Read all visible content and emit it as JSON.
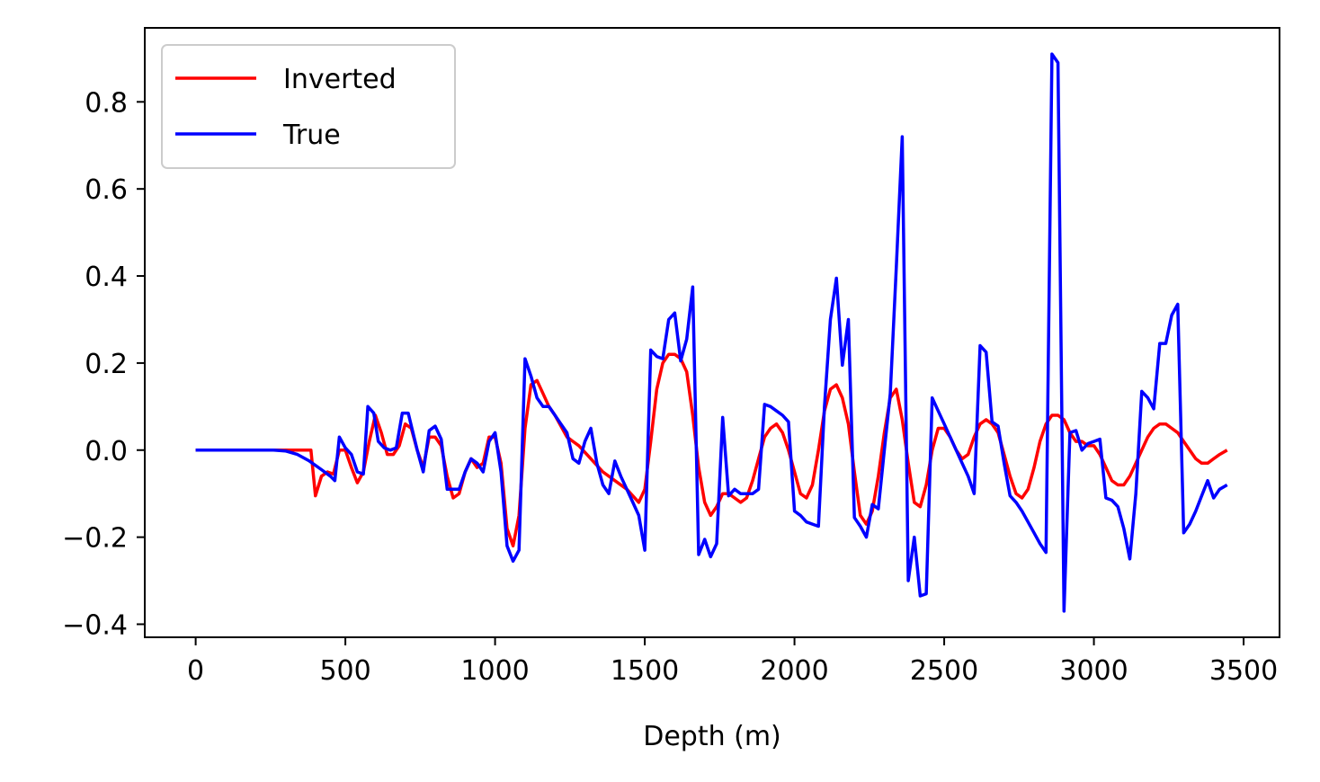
{
  "chart_data": {
    "type": "line",
    "title": "",
    "xlabel": "Depth (m)",
    "ylabel": "",
    "xlim": [
      -170,
      3620
    ],
    "ylim": [
      -0.43,
      0.97
    ],
    "x_ticks": [
      0,
      500,
      1000,
      1500,
      2000,
      2500,
      3000,
      3500
    ],
    "x_tick_labels": [
      "0",
      "500",
      "1000",
      "1500",
      "2000",
      "2500",
      "3000",
      "3500"
    ],
    "y_ticks": [
      -0.4,
      -0.2,
      0.0,
      0.2,
      0.4,
      0.6,
      0.8
    ],
    "y_tick_labels": [
      "−0.4",
      "−0.2",
      "0.0",
      "0.2",
      "0.4",
      "0.6",
      "0.8"
    ],
    "grid": false,
    "legend_position": "top-left",
    "series": [
      {
        "name": "Inverted",
        "color": "#ff0000",
        "points": [
          [
            0,
            0
          ],
          [
            100,
            0
          ],
          [
            200,
            0
          ],
          [
            300,
            0
          ],
          [
            340,
            0
          ],
          [
            385,
            0
          ],
          [
            400,
            -0.105
          ],
          [
            420,
            -0.06
          ],
          [
            440,
            -0.05
          ],
          [
            460,
            -0.055
          ],
          [
            480,
            0.0
          ],
          [
            500,
            0.0
          ],
          [
            520,
            -0.04
          ],
          [
            540,
            -0.075
          ],
          [
            560,
            -0.05
          ],
          [
            580,
            0.02
          ],
          [
            600,
            0.08
          ],
          [
            620,
            0.04
          ],
          [
            640,
            -0.01
          ],
          [
            660,
            -0.01
          ],
          [
            680,
            0.01
          ],
          [
            700,
            0.06
          ],
          [
            720,
            0.05
          ],
          [
            740,
            0.0
          ],
          [
            760,
            -0.04
          ],
          [
            780,
            0.03
          ],
          [
            800,
            0.03
          ],
          [
            820,
            0.01
          ],
          [
            840,
            -0.06
          ],
          [
            860,
            -0.11
          ],
          [
            880,
            -0.1
          ],
          [
            900,
            -0.05
          ],
          [
            920,
            -0.02
          ],
          [
            940,
            -0.04
          ],
          [
            960,
            -0.03
          ],
          [
            980,
            0.03
          ],
          [
            1000,
            0.03
          ],
          [
            1020,
            -0.03
          ],
          [
            1040,
            -0.18
          ],
          [
            1060,
            -0.22
          ],
          [
            1080,
            -0.15
          ],
          [
            1100,
            0.05
          ],
          [
            1120,
            0.15
          ],
          [
            1140,
            0.16
          ],
          [
            1160,
            0.13
          ],
          [
            1180,
            0.1
          ],
          [
            1200,
            0.08
          ],
          [
            1240,
            0.03
          ],
          [
            1280,
            0.01
          ],
          [
            1320,
            -0.02
          ],
          [
            1360,
            -0.05
          ],
          [
            1400,
            -0.07
          ],
          [
            1440,
            -0.09
          ],
          [
            1480,
            -0.12
          ],
          [
            1500,
            -0.09
          ],
          [
            1520,
            0.02
          ],
          [
            1540,
            0.14
          ],
          [
            1560,
            0.2
          ],
          [
            1580,
            0.22
          ],
          [
            1600,
            0.22
          ],
          [
            1620,
            0.21
          ],
          [
            1640,
            0.18
          ],
          [
            1660,
            0.08
          ],
          [
            1680,
            -0.04
          ],
          [
            1700,
            -0.12
          ],
          [
            1720,
            -0.15
          ],
          [
            1740,
            -0.13
          ],
          [
            1760,
            -0.1
          ],
          [
            1780,
            -0.1
          ],
          [
            1800,
            -0.11
          ],
          [
            1820,
            -0.12
          ],
          [
            1840,
            -0.11
          ],
          [
            1860,
            -0.07
          ],
          [
            1880,
            -0.02
          ],
          [
            1900,
            0.03
          ],
          [
            1920,
            0.05
          ],
          [
            1940,
            0.06
          ],
          [
            1960,
            0.04
          ],
          [
            1980,
            0.0
          ],
          [
            2000,
            -0.05
          ],
          [
            2020,
            -0.1
          ],
          [
            2040,
            -0.11
          ],
          [
            2060,
            -0.08
          ],
          [
            2080,
            0.0
          ],
          [
            2100,
            0.09
          ],
          [
            2120,
            0.14
          ],
          [
            2140,
            0.15
          ],
          [
            2160,
            0.12
          ],
          [
            2180,
            0.06
          ],
          [
            2200,
            -0.05
          ],
          [
            2220,
            -0.15
          ],
          [
            2240,
            -0.17
          ],
          [
            2260,
            -0.14
          ],
          [
            2280,
            -0.06
          ],
          [
            2300,
            0.04
          ],
          [
            2320,
            0.12
          ],
          [
            2340,
            0.14
          ],
          [
            2360,
            0.07
          ],
          [
            2380,
            -0.03
          ],
          [
            2400,
            -0.12
          ],
          [
            2420,
            -0.13
          ],
          [
            2440,
            -0.08
          ],
          [
            2460,
            0.0
          ],
          [
            2480,
            0.05
          ],
          [
            2500,
            0.05
          ],
          [
            2520,
            0.03
          ],
          [
            2540,
            0.0
          ],
          [
            2560,
            -0.02
          ],
          [
            2580,
            -0.01
          ],
          [
            2600,
            0.03
          ],
          [
            2620,
            0.06
          ],
          [
            2640,
            0.07
          ],
          [
            2660,
            0.06
          ],
          [
            2680,
            0.04
          ],
          [
            2700,
            -0.01
          ],
          [
            2720,
            -0.06
          ],
          [
            2740,
            -0.1
          ],
          [
            2760,
            -0.11
          ],
          [
            2780,
            -0.09
          ],
          [
            2800,
            -0.04
          ],
          [
            2820,
            0.02
          ],
          [
            2840,
            0.06
          ],
          [
            2860,
            0.08
          ],
          [
            2880,
            0.08
          ],
          [
            2900,
            0.07
          ],
          [
            2920,
            0.04
          ],
          [
            2940,
            0.02
          ],
          [
            2960,
            0.02
          ],
          [
            2980,
            0.01
          ],
          [
            3000,
            0.01
          ],
          [
            3020,
            -0.01
          ],
          [
            3040,
            -0.04
          ],
          [
            3060,
            -0.07
          ],
          [
            3080,
            -0.08
          ],
          [
            3100,
            -0.08
          ],
          [
            3120,
            -0.06
          ],
          [
            3140,
            -0.03
          ],
          [
            3160,
            0.0
          ],
          [
            3180,
            0.03
          ],
          [
            3200,
            0.05
          ],
          [
            3220,
            0.06
          ],
          [
            3240,
            0.06
          ],
          [
            3260,
            0.05
          ],
          [
            3280,
            0.04
          ],
          [
            3300,
            0.02
          ],
          [
            3320,
            0.0
          ],
          [
            3340,
            -0.02
          ],
          [
            3360,
            -0.03
          ],
          [
            3380,
            -0.03
          ],
          [
            3400,
            -0.02
          ],
          [
            3420,
            -0.01
          ],
          [
            3445,
            0.0
          ]
        ]
      },
      {
        "name": "True",
        "color": "#0000ff",
        "points": [
          [
            0,
            0
          ],
          [
            100,
            0
          ],
          [
            200,
            0
          ],
          [
            260,
            0
          ],
          [
            300,
            -0.002
          ],
          [
            340,
            -0.01
          ],
          [
            380,
            -0.025
          ],
          [
            420,
            -0.045
          ],
          [
            450,
            -0.06
          ],
          [
            465,
            -0.07
          ],
          [
            480,
            0.03
          ],
          [
            500,
            0.005
          ],
          [
            520,
            -0.01
          ],
          [
            540,
            -0.05
          ],
          [
            560,
            -0.055
          ],
          [
            575,
            0.1
          ],
          [
            595,
            0.085
          ],
          [
            610,
            0.02
          ],
          [
            630,
            0.005
          ],
          [
            650,
            0.0
          ],
          [
            670,
            0.005
          ],
          [
            690,
            0.085
          ],
          [
            710,
            0.085
          ],
          [
            740,
            0.0
          ],
          [
            760,
            -0.05
          ],
          [
            780,
            0.045
          ],
          [
            800,
            0.055
          ],
          [
            820,
            0.025
          ],
          [
            840,
            -0.09
          ],
          [
            860,
            -0.09
          ],
          [
            880,
            -0.09
          ],
          [
            900,
            -0.05
          ],
          [
            920,
            -0.02
          ],
          [
            940,
            -0.03
          ],
          [
            960,
            -0.05
          ],
          [
            980,
            0.02
          ],
          [
            1000,
            0.04
          ],
          [
            1020,
            -0.05
          ],
          [
            1040,
            -0.22
          ],
          [
            1060,
            -0.255
          ],
          [
            1080,
            -0.23
          ],
          [
            1100,
            0.21
          ],
          [
            1120,
            0.17
          ],
          [
            1140,
            0.12
          ],
          [
            1160,
            0.1
          ],
          [
            1180,
            0.1
          ],
          [
            1200,
            0.08
          ],
          [
            1220,
            0.06
          ],
          [
            1240,
            0.04
          ],
          [
            1260,
            -0.02
          ],
          [
            1280,
            -0.03
          ],
          [
            1300,
            0.02
          ],
          [
            1320,
            0.05
          ],
          [
            1340,
            -0.03
          ],
          [
            1360,
            -0.08
          ],
          [
            1380,
            -0.1
          ],
          [
            1400,
            -0.025
          ],
          [
            1420,
            -0.06
          ],
          [
            1440,
            -0.09
          ],
          [
            1460,
            -0.12
          ],
          [
            1480,
            -0.15
          ],
          [
            1500,
            -0.23
          ],
          [
            1520,
            0.23
          ],
          [
            1540,
            0.215
          ],
          [
            1560,
            0.21
          ],
          [
            1580,
            0.3
          ],
          [
            1600,
            0.315
          ],
          [
            1620,
            0.205
          ],
          [
            1640,
            0.255
          ],
          [
            1660,
            0.375
          ],
          [
            1680,
            -0.24
          ],
          [
            1700,
            -0.205
          ],
          [
            1720,
            -0.245
          ],
          [
            1740,
            -0.215
          ],
          [
            1760,
            0.075
          ],
          [
            1780,
            -0.105
          ],
          [
            1800,
            -0.09
          ],
          [
            1820,
            -0.1
          ],
          [
            1840,
            -0.1
          ],
          [
            1860,
            -0.1
          ],
          [
            1880,
            -0.09
          ],
          [
            1900,
            0.105
          ],
          [
            1920,
            0.1
          ],
          [
            1940,
            0.09
          ],
          [
            1960,
            0.08
          ],
          [
            1980,
            0.065
          ],
          [
            2000,
            -0.14
          ],
          [
            2020,
            -0.15
          ],
          [
            2040,
            -0.165
          ],
          [
            2060,
            -0.17
          ],
          [
            2080,
            -0.175
          ],
          [
            2100,
            0.1
          ],
          [
            2120,
            0.3
          ],
          [
            2140,
            0.395
          ],
          [
            2160,
            0.195
          ],
          [
            2180,
            0.3
          ],
          [
            2200,
            -0.155
          ],
          [
            2220,
            -0.175
          ],
          [
            2240,
            -0.2
          ],
          [
            2260,
            -0.125
          ],
          [
            2280,
            -0.135
          ],
          [
            2300,
            0.0
          ],
          [
            2320,
            0.13
          ],
          [
            2340,
            0.42
          ],
          [
            2360,
            0.72
          ],
          [
            2380,
            -0.3
          ],
          [
            2400,
            -0.2
          ],
          [
            2420,
            -0.335
          ],
          [
            2440,
            -0.33
          ],
          [
            2460,
            0.12
          ],
          [
            2480,
            0.09
          ],
          [
            2500,
            0.06
          ],
          [
            2520,
            0.03
          ],
          [
            2540,
            0.0
          ],
          [
            2560,
            -0.03
          ],
          [
            2580,
            -0.06
          ],
          [
            2600,
            -0.1
          ],
          [
            2620,
            0.24
          ],
          [
            2640,
            0.225
          ],
          [
            2660,
            0.065
          ],
          [
            2680,
            0.055
          ],
          [
            2700,
            -0.03
          ],
          [
            2720,
            -0.105
          ],
          [
            2740,
            -0.12
          ],
          [
            2760,
            -0.14
          ],
          [
            2780,
            -0.165
          ],
          [
            2800,
            -0.19
          ],
          [
            2820,
            -0.215
          ],
          [
            2840,
            -0.235
          ],
          [
            2860,
            0.91
          ],
          [
            2880,
            0.89
          ],
          [
            2900,
            -0.37
          ],
          [
            2920,
            0.04
          ],
          [
            2940,
            0.045
          ],
          [
            2960,
            0.0
          ],
          [
            2980,
            0.015
          ],
          [
            3000,
            0.02
          ],
          [
            3020,
            0.025
          ],
          [
            3040,
            -0.11
          ],
          [
            3060,
            -0.115
          ],
          [
            3080,
            -0.13
          ],
          [
            3100,
            -0.18
          ],
          [
            3120,
            -0.25
          ],
          [
            3140,
            -0.1
          ],
          [
            3160,
            0.135
          ],
          [
            3180,
            0.12
          ],
          [
            3200,
            0.095
          ],
          [
            3220,
            0.245
          ],
          [
            3240,
            0.245
          ],
          [
            3260,
            0.31
          ],
          [
            3280,
            0.335
          ],
          [
            3300,
            -0.19
          ],
          [
            3320,
            -0.17
          ],
          [
            3340,
            -0.14
          ],
          [
            3360,
            -0.105
          ],
          [
            3380,
            -0.07
          ],
          [
            3400,
            -0.11
          ],
          [
            3420,
            -0.09
          ],
          [
            3445,
            -0.08
          ]
        ]
      }
    ]
  }
}
